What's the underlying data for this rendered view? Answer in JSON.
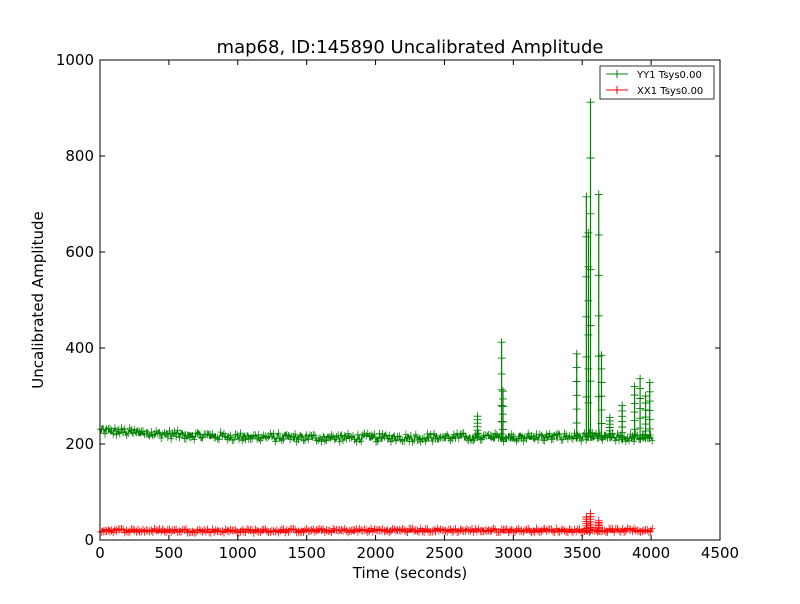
{
  "chart_data": {
    "type": "line",
    "title": "map68, ID:145890 Uncalibrated Amplitude",
    "xlabel": "Time (seconds)",
    "ylabel": "Uncalibrated Amplitude",
    "xlim": [
      0,
      4500
    ],
    "ylim": [
      0,
      1000
    ],
    "xticks": [
      0,
      500,
      1000,
      1500,
      2000,
      2500,
      3000,
      3500,
      4000,
      4500
    ],
    "yticks": [
      0,
      200,
      400,
      600,
      800,
      1000
    ],
    "grid": false,
    "legend_position": "top-right",
    "series": [
      {
        "name": "YY1 Tsys0.00",
        "color": "#008000",
        "marker": "+",
        "baseline": [
          [
            0,
            228
          ],
          [
            500,
            220
          ],
          [
            1000,
            215
          ],
          [
            1500,
            213
          ],
          [
            2000,
            213
          ],
          [
            2500,
            214
          ],
          [
            3000,
            214
          ],
          [
            3500,
            215
          ],
          [
            4000,
            212
          ]
        ],
        "spikes": [
          {
            "x": 2740,
            "y": 258
          },
          {
            "x": 2915,
            "y": 412
          },
          {
            "x": 2925,
            "y": 310
          },
          {
            "x": 3460,
            "y": 388
          },
          {
            "x": 3530,
            "y": 715
          },
          {
            "x": 3545,
            "y": 640
          },
          {
            "x": 3560,
            "y": 912
          },
          {
            "x": 3620,
            "y": 720
          },
          {
            "x": 3640,
            "y": 385
          },
          {
            "x": 3700,
            "y": 255
          },
          {
            "x": 3790,
            "y": 280
          },
          {
            "x": 3880,
            "y": 320
          },
          {
            "x": 3920,
            "y": 336
          },
          {
            "x": 3960,
            "y": 300
          },
          {
            "x": 3990,
            "y": 328
          }
        ]
      },
      {
        "name": "XX1 Tsys0.00",
        "color": "#ff0000",
        "marker": "+",
        "baseline": [
          [
            0,
            20
          ],
          [
            1000,
            19
          ],
          [
            2000,
            20
          ],
          [
            3000,
            20
          ],
          [
            4000,
            20
          ]
        ],
        "spikes": [
          {
            "x": 3530,
            "y": 48
          },
          {
            "x": 3560,
            "y": 55
          },
          {
            "x": 3620,
            "y": 40
          }
        ]
      }
    ]
  }
}
